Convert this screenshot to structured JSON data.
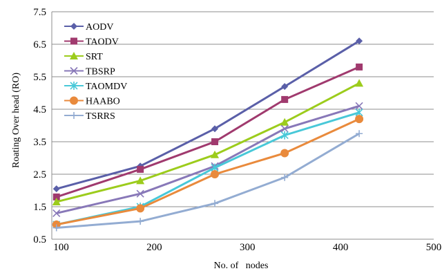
{
  "chart_data": {
    "type": "line",
    "title": "",
    "xlabel": "No. of   nodes",
    "ylabel": "Roating Over head (RO)",
    "xlim": [
      90,
      500
    ],
    "ylim": [
      0.5,
      7.5
    ],
    "xticks": [
      100,
      200,
      300,
      400,
      500
    ],
    "yticks": [
      0.5,
      1.5,
      2.5,
      3.5,
      4.5,
      5.5,
      6.5,
      7.5
    ],
    "x_tick_labels": [
      "100",
      "200",
      "300",
      "400",
      "500"
    ],
    "y_tick_labels": [
      "0.5",
      "1.5",
      "2.5",
      "3.5",
      "4.5",
      "5.5",
      "6.5",
      "7.5"
    ],
    "grid": "horizontal",
    "legend_position": "top-left",
    "x": [
      95,
      185,
      265,
      340,
      420
    ],
    "series": [
      {
        "name": "AODV",
        "values": [
          2.05,
          2.75,
          3.9,
          5.2,
          6.6
        ],
        "color": "#5a5fa8",
        "marker": "diamond"
      },
      {
        "name": "TAODV",
        "values": [
          1.8,
          2.65,
          3.5,
          4.8,
          5.8
        ],
        "color": "#a03a6e",
        "marker": "square"
      },
      {
        "name": "SRT",
        "values": [
          1.65,
          2.3,
          3.1,
          4.1,
          5.3
        ],
        "color": "#9ccc1c",
        "marker": "triangle"
      },
      {
        "name": "TBSRP",
        "values": [
          1.3,
          1.9,
          2.75,
          3.9,
          4.6
        ],
        "color": "#8878b8",
        "marker": "x"
      },
      {
        "name": "TAOMDV",
        "values": [
          0.95,
          1.5,
          2.7,
          3.7,
          4.4
        ],
        "color": "#48c8d8",
        "marker": "star"
      },
      {
        "name": "HAABO",
        "values": [
          0.95,
          1.45,
          2.5,
          3.15,
          4.2
        ],
        "color": "#e98a3c",
        "marker": "circle"
      },
      {
        "name": "TSRRS",
        "values": [
          0.85,
          1.05,
          1.6,
          2.4,
          3.75
        ],
        "color": "#93acd2",
        "marker": "plus"
      }
    ]
  }
}
